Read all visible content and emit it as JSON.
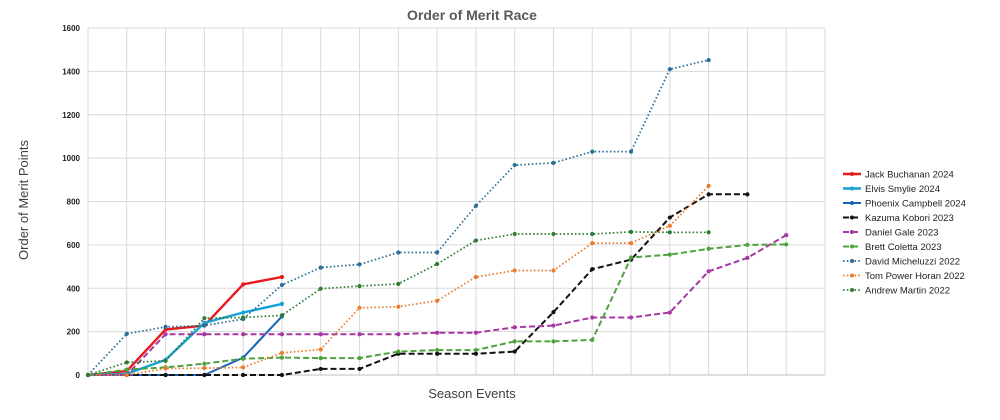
{
  "chart_data": {
    "type": "line",
    "title": "Order of Merit Race",
    "xlabel": "Season Events",
    "ylabel": "Order of Merit Points",
    "ylim": [
      0,
      1600
    ],
    "yticks": [
      0,
      200,
      400,
      600,
      800,
      1000,
      1200,
      1400,
      1600
    ],
    "grid": true,
    "legend_position": "right",
    "series": [
      {
        "name": "Jack Buchanan 2024",
        "color": "#e8191c",
        "dash": "solid",
        "width": 2.4,
        "values": [
          0,
          18,
          210,
          228,
          418,
          452
        ]
      },
      {
        "name": "Elvis Smylie 2024",
        "color": "#14a1d6",
        "dash": "solid",
        "width": 2.4,
        "values": [
          0,
          5,
          70,
          240,
          288,
          328
        ]
      },
      {
        "name": "Phoenix Campbell 2024",
        "color": "#1762b5",
        "dash": "solid",
        "width": 2.0,
        "values": [
          0,
          0,
          0,
          0,
          80,
          270
        ]
      },
      {
        "name": "Kazuma Kobori 2023",
        "color": "#111111",
        "dash": "dashed",
        "width": 2.0,
        "values": [
          0,
          0,
          0,
          0,
          0,
          0,
          28,
          28,
          98,
          98,
          98,
          108,
          290,
          488,
          532,
          726,
          833,
          833
        ]
      },
      {
        "name": "Daniel Gale 2023",
        "color": "#a737a4",
        "dash": "dashed",
        "width": 2.0,
        "values": [
          0,
          0,
          188,
          188,
          188,
          188,
          188,
          188,
          188,
          195,
          195,
          220,
          228,
          265,
          265,
          288,
          478,
          540,
          645
        ]
      },
      {
        "name": "Brett Coletta 2023",
        "color": "#4da33e",
        "dash": "dashed",
        "width": 2.0,
        "values": [
          0,
          25,
          35,
          52,
          75,
          80,
          78,
          78,
          108,
          115,
          115,
          155,
          155,
          162,
          542,
          555,
          582,
          600,
          602
        ]
      },
      {
        "name": "David Micheluzzi 2022",
        "color": "#2a6f97",
        "dash": "dotted",
        "width": 1.7,
        "values": [
          0,
          190,
          222,
          228,
          258,
          415,
          495,
          510,
          565,
          565,
          780,
          968,
          978,
          1030,
          1030,
          1410,
          1452
        ]
      },
      {
        "name": "Tom Power Horan 2022",
        "color": "#ec7d2e",
        "dash": "dotted",
        "width": 1.7,
        "values": [
          0,
          0,
          30,
          32,
          35,
          102,
          118,
          310,
          315,
          342,
          452,
          482,
          482,
          608,
          608,
          688,
          872
        ]
      },
      {
        "name": "Andrew Martin 2022",
        "color": "#2e7d32",
        "dash": "dotted",
        "width": 1.7,
        "values": [
          0,
          58,
          65,
          262,
          265,
          275,
          398,
          410,
          420,
          512,
          620,
          650,
          650,
          650,
          660,
          658,
          658
        ]
      }
    ]
  }
}
